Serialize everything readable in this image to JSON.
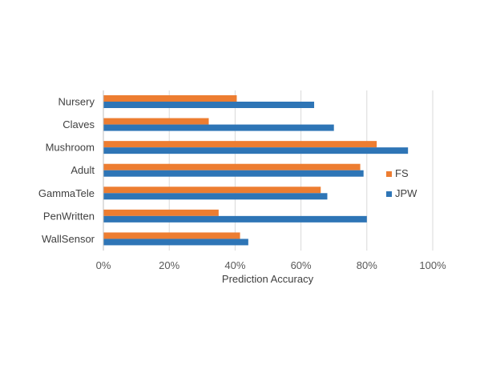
{
  "chart_data": {
    "type": "bar",
    "orientation": "horizontal",
    "categories": [
      "Nursery",
      "Claves",
      "Mushroom",
      "Adult",
      "GammaTele",
      "PenWritten",
      "WallSensor"
    ],
    "series": [
      {
        "name": "FS",
        "color": "#ED7D31",
        "values": [
          40.5,
          32,
          83,
          78,
          66,
          35,
          41.5
        ]
      },
      {
        "name": "JPW",
        "color": "#2E75B6",
        "values": [
          64,
          70,
          92.5,
          79,
          68,
          80,
          44
        ]
      }
    ],
    "xlabel": "Prediction Accuracy",
    "xlim": [
      0,
      100
    ],
    "xticks": [
      "0%",
      "20%",
      "40%",
      "60%",
      "80%",
      "100%"
    ],
    "grid": true,
    "legend": "right"
  }
}
